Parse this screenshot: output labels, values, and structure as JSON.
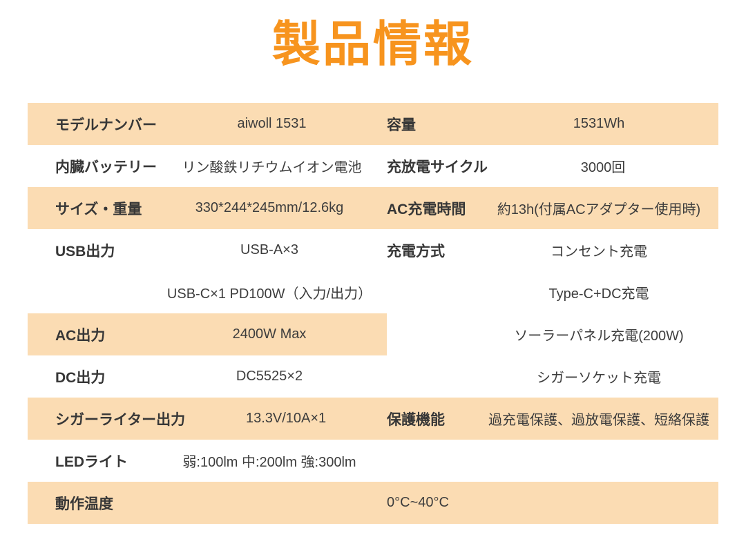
{
  "title": "製品情報",
  "colors": {
    "accent_orange": "#F7941E",
    "row_peach": "#FBDCB3",
    "text": "#3B3B3B",
    "background": "#FFFFFF"
  },
  "table": {
    "rows": [
      {
        "l_label": "モデルナンバー",
        "l_value": "aiwoll 1531",
        "r_label": "容量",
        "r_value": "1531Wh"
      },
      {
        "l_label": "内臓バッテリー",
        "l_value": "リン酸鉄リチウムイオン電池",
        "r_label": "充放電サイクル",
        "r_value": "3000回"
      },
      {
        "l_label": "サイズ・重量",
        "l_value": "330*244*245mm/12.6kg",
        "r_label": "AC充電時間",
        "r_value": "約13h(付属ACアダプター使用時)"
      },
      {
        "l_label": "USB出力",
        "l_value": "USB-A×3",
        "r_label": "充電方式",
        "r_value": "コンセント充電"
      },
      {
        "l_label": "",
        "l_value": "USB-C×1 PD100W（入力/出力）",
        "r_label": "",
        "r_value": "Type-C+DC充電"
      },
      {
        "l_label": "AC出力",
        "l_value": "2400W Max",
        "r_label": "",
        "r_value": "ソーラーパネル充電(200W)"
      },
      {
        "l_label": "DC出力",
        "l_value": "DC5525×2",
        "r_label": "",
        "r_value": "シガーソケット充電"
      },
      {
        "l_label": "シガーライター出力",
        "l_value": "13.3V/10A×1",
        "r_label": "保護機能",
        "r_value": "過充電保護、過放電保護、短絡保護"
      },
      {
        "l_label": "LEDライト",
        "l_value": "弱:100lm 中:200lm 強:300lm",
        "r_label": "",
        "r_value": ""
      },
      {
        "l_label": "動作温度",
        "l_value": "",
        "r_label": "",
        "r_value": "0°C~40°C"
      }
    ]
  }
}
